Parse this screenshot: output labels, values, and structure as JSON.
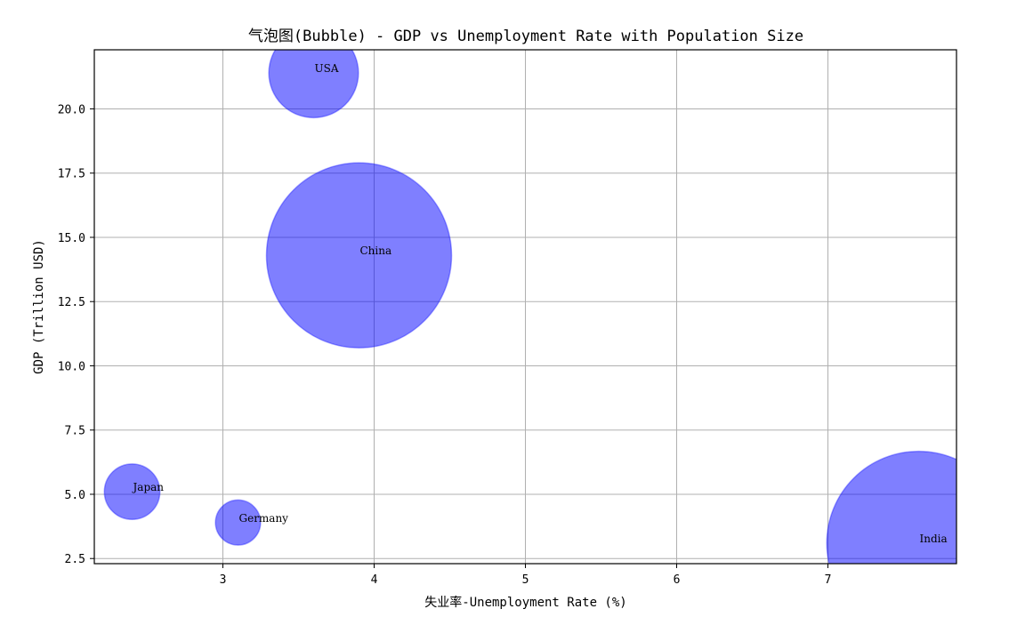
{
  "chart_data": {
    "type": "scatter",
    "title": "气泡图(Bubble) - GDP vs Unemployment Rate with Population Size",
    "xlabel": "失业率-Unemployment Rate (%)",
    "ylabel": "GDP (Trillion USD)",
    "xlim": [
      2.15,
      7.85
    ],
    "ylim": [
      2.3,
      22.3
    ],
    "xticks": [
      3,
      4,
      5,
      6,
      7
    ],
    "xtick_labels": [
      "3",
      "4",
      "5",
      "6",
      "7"
    ],
    "yticks": [
      2.5,
      5.0,
      7.5,
      10.0,
      12.5,
      15.0,
      17.5,
      20.0
    ],
    "ytick_labels": [
      "2.5",
      "5.0",
      "7.5",
      "10.0",
      "12.5",
      "15.0",
      "17.5",
      "20.0"
    ],
    "grid": true,
    "bubble_color": "#0000ff",
    "bubble_alpha": 0.5,
    "points": [
      {
        "label": "USA",
        "x": 3.6,
        "y": 21.4,
        "size": 328
      },
      {
        "label": "China",
        "x": 3.9,
        "y": 14.3,
        "size": 1400
      },
      {
        "label": "Japan",
        "x": 2.4,
        "y": 5.1,
        "size": 126
      },
      {
        "label": "Germany",
        "x": 3.1,
        "y": 3.9,
        "size": 83
      },
      {
        "label": "India",
        "x": 7.6,
        "y": 3.1,
        "size": 1380
      }
    ]
  }
}
